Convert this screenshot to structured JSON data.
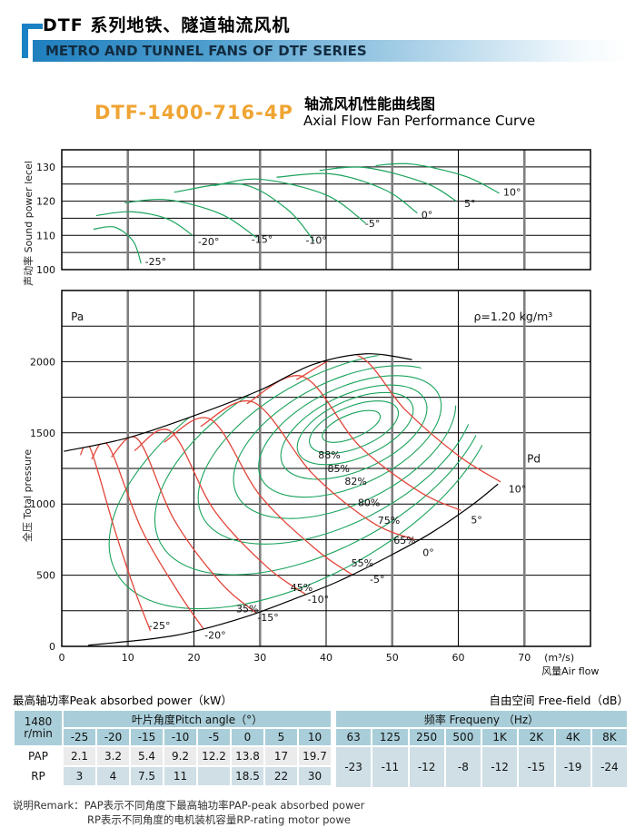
{
  "header": {
    "title_zh": "DTF 系列地铁、隧道轴流风机",
    "subtitle_en": "METRO AND TUNNEL FANS OF DTF SERIES"
  },
  "product": {
    "model": "DTF-1400-716-4P",
    "curve_title_zh": "轴流风机性能曲线图",
    "curve_title_en": "Axial Flow Fan Performance Curve"
  },
  "colors": {
    "curve_green": "#1aa35c",
    "curve_red": "#e2453a",
    "grid_gray": "#7f7f7f",
    "grid_black": "#000000",
    "accent_blue": "#1a82c4",
    "model_orange": "#efa433",
    "table_header_blue": "#a9ced9",
    "table_row_gray": "#ebebeb",
    "table_row_blue": "#cfdfe5"
  },
  "chart_data": [
    {
      "type": "line",
      "id": "sound-power",
      "ylabel": "声动率 Sound power lecel",
      "x": {
        "min": 0,
        "max": 80,
        "grid": 10,
        "ticks": []
      },
      "y": {
        "min": 100,
        "max": 135,
        "grid": 5,
        "ticks": [
          100,
          110,
          120,
          130
        ]
      },
      "series": [
        {
          "label": "-25°",
          "pts": [
            [
              4.8,
              111.8
            ],
            [
              8,
              112.4
            ],
            [
              10.8,
              108.3
            ],
            [
              12,
              101.8
            ]
          ],
          "lp": [
            12.6,
            101.3
          ]
        },
        {
          "label": "-20°",
          "pts": [
            [
              5.2,
              115.8
            ],
            [
              10.5,
              116.9
            ],
            [
              16,
              114.8
            ],
            [
              19.8,
              110
            ]
          ],
          "lp": [
            20.6,
            107.2
          ]
        },
        {
          "label": "-15°",
          "pts": [
            [
              9.5,
              119.5
            ],
            [
              16,
              120.4
            ],
            [
              24,
              116.3
            ],
            [
              29.5,
              109.3
            ]
          ],
          "lp": [
            28.7,
            107.8
          ]
        },
        {
          "label": "-10°",
          "pts": [
            [
              17,
              122.6
            ],
            [
              27,
              125
            ],
            [
              34,
              117.8
            ],
            [
              38.2,
              108.3
            ]
          ],
          "lp": [
            36.9,
            107.6
          ]
        },
        {
          "label": "-5°",
          "pts": [
            [
              23,
              124.5
            ],
            [
              30,
              126.4
            ],
            [
              40,
              121.8
            ],
            [
              46,
              113.5
            ]
          ],
          "lp": [
            45.9,
            112.4
          ]
        },
        {
          "label": "0°",
          "pts": [
            [
              32.5,
              127
            ],
            [
              41,
              127.9
            ],
            [
              49,
              123.2
            ],
            [
              53.8,
              116.5
            ]
          ],
          "lp": [
            54.4,
            115.0
          ]
        },
        {
          "label": "5°",
          "pts": [
            [
              39,
              129
            ],
            [
              46,
              129.8
            ],
            [
              55,
              125.3
            ],
            [
              59.7,
              120
            ]
          ],
          "lp": [
            60.9,
            118.3
          ]
        },
        {
          "label": "10°",
          "pts": [
            [
              47.5,
              130.4
            ],
            [
              53,
              130.8
            ],
            [
              61,
              127.3
            ],
            [
              66.2,
              122.3
            ]
          ],
          "lp": [
            66.8,
            121.6
          ]
        }
      ]
    },
    {
      "type": "contour-line",
      "id": "pressure-flow",
      "ylabel": "全压 Total pressure",
      "yunit": "Pa",
      "xunit": "(m³/s)",
      "xlabel": "风量Air flow",
      "density_note": "ρ=1.20 kg/m³",
      "density_pos": [
        68.3,
        2290
      ],
      "pa_pos": [
        1.4,
        2290
      ],
      "pd_label": "Pd",
      "pd_label_pos": [
        70.4,
        1290
      ],
      "x": {
        "min": 0,
        "max": 80,
        "grid": 10,
        "ticks": [
          0,
          10,
          20,
          30,
          40,
          50,
          60,
          70
        ]
      },
      "y": {
        "min": 0,
        "max": 2500,
        "grid": 250,
        "ticks": [
          0,
          500,
          1000,
          1500,
          2000
        ]
      },
      "envelope": [
        [
          0.3,
          1370
        ],
        [
          10,
          1465
        ],
        [
          20,
          1620
        ],
        [
          30,
          1800
        ],
        [
          38,
          1980
        ],
        [
          46,
          2055
        ],
        [
          53,
          2015
        ]
      ],
      "pd_curve": [
        [
          4,
          8
        ],
        [
          14,
          55
        ],
        [
          20,
          105
        ],
        [
          28,
          210
        ],
        [
          35,
          330
        ],
        [
          42,
          460
        ],
        [
          50,
          645
        ],
        [
          56,
          800
        ],
        [
          62,
          990
        ],
        [
          66,
          1140
        ]
      ],
      "clip_bridge": [
        [
          58,
          1800
        ],
        [
          63,
          1460
        ],
        [
          67,
          1170
        ]
      ],
      "pitch_curves": [
        {
          "label": "-25°",
          "pts": [
            [
              2.8,
              1345
            ],
            [
              4.3,
              1392
            ],
            [
              8,
              820
            ],
            [
              11,
              400
            ],
            [
              13.4,
              110
            ]
          ],
          "lp": [
            13.2,
            120
          ]
        },
        {
          "label": "-20°",
          "pts": [
            [
              4.5,
              1315
            ],
            [
              7,
              1412
            ],
            [
              12,
              830
            ],
            [
              17.5,
              390
            ],
            [
              21.4,
              125
            ]
          ],
          "lp": [
            21.6,
            55
          ]
        },
        {
          "label": "-15°",
          "pts": [
            [
              7.5,
              1330
            ],
            [
              11.5,
              1455
            ],
            [
              17,
              890
            ],
            [
              24,
              450
            ],
            [
              29.4,
              235
            ]
          ],
          "lp": [
            29.6,
            180
          ]
        },
        {
          "label": "-10°",
          "pts": [
            [
              11,
              1375
            ],
            [
              16.5,
              1510
            ],
            [
              23,
              960
            ],
            [
              31,
              560
            ],
            [
              36.9,
              365
            ]
          ],
          "lp": [
            37.2,
            305
          ]
        },
        {
          "label": "-5°",
          "pts": [
            [
              15.5,
              1435
            ],
            [
              22.5,
              1595
            ],
            [
              30,
              1060
            ],
            [
              38.5,
              680
            ],
            [
              43.9,
              505
            ]
          ],
          "lp": [
            46.6,
            445
          ]
        },
        {
          "label": "0°",
          "pts": [
            [
              21,
              1545
            ],
            [
              29,
              1715
            ],
            [
              38,
              1210
            ],
            [
              47,
              870
            ],
            [
              53.4,
              750
            ]
          ],
          "lp": [
            54.6,
            635
          ]
        },
        {
          "label": "5°",
          "pts": [
            [
              28,
              1705
            ],
            [
              36.5,
              1895
            ],
            [
              45,
              1410
            ],
            [
              54,
              1090
            ],
            [
              60.4,
              955
            ]
          ],
          "lp": [
            61.9,
            865
          ]
        },
        {
          "label": "10°",
          "pts": [
            [
              35.5,
              1875
            ],
            [
              44.5,
              2048
            ],
            [
              52,
              1660
            ],
            [
              60,
              1340
            ],
            [
              66.4,
              1155
            ]
          ],
          "lp": [
            67.6,
            1080
          ]
        }
      ],
      "efficiency_contours": [
        {
          "label": "88%",
          "c": [
            43.8,
            1545
          ],
          "rx": 34,
          "ry": 13,
          "rot": -22,
          "lp": [
            38.8,
            1320
          ]
        },
        {
          "label": "85%",
          "c": [
            44.2,
            1540
          ],
          "rx": 52,
          "ry": 23,
          "rot": -22,
          "lp": [
            40.2,
            1225
          ]
        },
        {
          "label": "82%",
          "c": [
            44.4,
            1530
          ],
          "rx": 68,
          "ry": 32,
          "rot": -23,
          "lp": [
            42.8,
            1135
          ]
        },
        {
          "label": "80%",
          "c": [
            44.2,
            1505
          ],
          "rx": 86,
          "ry": 42,
          "rot": -24,
          "lp": [
            44.8,
            985
          ]
        },
        {
          "label": "75%",
          "c": [
            43.6,
            1475
          ],
          "rx": 108,
          "ry": 54,
          "rot": -25,
          "lp": [
            47.8,
            862
          ]
        },
        {
          "label": "65%",
          "c": [
            42.8,
            1435
          ],
          "rx": 132,
          "ry": 68,
          "rot": -26,
          "lp": [
            50.2,
            722
          ]
        },
        {
          "label": "55%",
          "c": [
            41.5,
            1390
          ],
          "rx": 165,
          "ry": 83,
          "rot": -27,
          "lp": [
            43.8,
            562
          ]
        },
        {
          "label": "45%",
          "c": [
            39.2,
            1325
          ],
          "rx": 200,
          "ry": 100,
          "rot": -28,
          "lp": [
            34.6,
            388
          ]
        },
        {
          "label": "35%",
          "c": [
            36.5,
            1245
          ],
          "rx": 235,
          "ry": 118,
          "rot": -29,
          "lp": [
            26.4,
            238
          ]
        }
      ]
    }
  ],
  "tables": {
    "left": {
      "title": "最高轴功率Peak absorbed power（kW）",
      "corner_line1": "1480",
      "corner_line2": "r/min",
      "group_header": "叶片角度Pitch angle（°）",
      "angles": [
        "-25",
        "-20",
        "-15",
        "-10",
        "-5",
        "0",
        "5",
        "10"
      ],
      "rows": [
        {
          "label": "PAP",
          "values": [
            "2.1",
            "3.2",
            "5.4",
            "9.2",
            "12.2",
            "13.8",
            "17",
            "19.7"
          ]
        },
        {
          "label": "RP",
          "values": [
            "3",
            "4",
            "7.5",
            "11",
            "",
            "18.5",
            "22",
            "30"
          ]
        }
      ]
    },
    "right": {
      "title": "自由空间 Free-field（dB）",
      "group_header": "频率  Frequeny （Hz）",
      "freqs": [
        "63",
        "125",
        "250",
        "500",
        "1K",
        "2K",
        "4K",
        "8K"
      ],
      "values": [
        "-23",
        "-11",
        "-12",
        "-8",
        "-12",
        "-15",
        "-19",
        "-24"
      ]
    }
  },
  "remark": {
    "line1": "说明Remark：PAP表示不同角度下最高轴功率PAP-peak absorbed power",
    "line2": "RP表示不同角度的电机装机容量RP-rating motor powe"
  }
}
